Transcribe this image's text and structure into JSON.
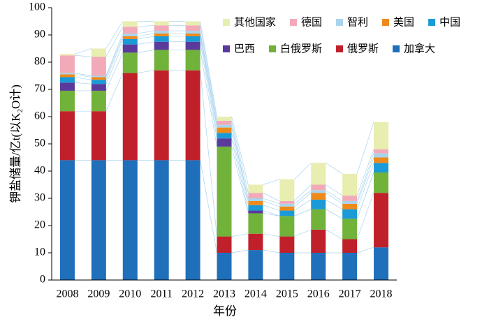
{
  "chart_data": {
    "type": "stacked_bar",
    "x_label": "年份",
    "y_label_parts": [
      "钾盐储量/亿t(以K",
      "2",
      "O计)"
    ],
    "categories": [
      "2008",
      "2009",
      "2010",
      "2011",
      "2012",
      "2013",
      "2014",
      "2015",
      "2016",
      "2017",
      "2018"
    ],
    "series": [
      {
        "name": "加拿大",
        "color": "#1f6fba",
        "values": [
          44,
          44,
          44,
          44,
          44,
          10,
          11,
          10,
          10,
          10,
          12
        ]
      },
      {
        "name": "俄罗斯",
        "color": "#c0202a",
        "values": [
          18,
          18,
          32,
          33,
          33,
          6,
          6,
          6,
          8.5,
          5,
          20
        ]
      },
      {
        "name": "白俄罗斯",
        "color": "#70b23a",
        "values": [
          7.5,
          7.5,
          7.5,
          7.5,
          7.5,
          33,
          7.5,
          7.5,
          7.5,
          7.5,
          7.5
        ]
      },
      {
        "name": "巴西",
        "color": "#5a3a9a",
        "values": [
          3,
          2.5,
          3,
          3,
          3,
          3,
          1,
          0,
          0,
          0,
          0
        ]
      },
      {
        "name": "中国",
        "color": "#1a9ad6",
        "values": [
          2,
          1.5,
          2,
          2,
          2,
          2,
          2,
          2,
          3.5,
          3.5,
          3.5
        ]
      },
      {
        "name": "美国",
        "color": "#ee8a1a",
        "values": [
          1,
          1,
          1,
          1,
          1,
          2,
          1.5,
          1.5,
          2.5,
          2,
          2
        ]
      },
      {
        "name": "智利",
        "color": "#a8d4ec",
        "values": [
          0.5,
          0.5,
          1,
          1,
          1,
          1,
          1,
          1,
          1,
          1,
          1.5
        ]
      },
      {
        "name": "德国",
        "color": "#f2aab8",
        "values": [
          6.5,
          7,
          2.5,
          2,
          2,
          1.5,
          2,
          1,
          2,
          2,
          1.5
        ]
      },
      {
        "name": "其他国家",
        "color": "#e8edb0",
        "values": [
          0.5,
          3,
          2,
          1.5,
          1.5,
          1.5,
          3,
          8,
          8,
          8,
          10
        ]
      }
    ],
    "ylim": [
      0,
      100
    ],
    "yticks": [
      0,
      10,
      20,
      30,
      40,
      50,
      60,
      70,
      80,
      90,
      100
    ]
  }
}
